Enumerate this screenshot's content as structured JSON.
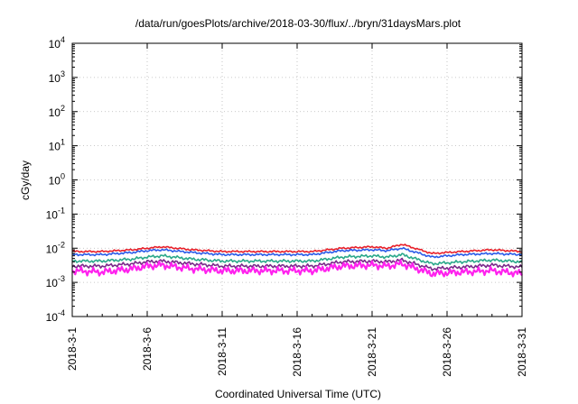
{
  "chart_data": {
    "type": "line",
    "title": "/data/run/goesPlots/archive/2018-03-30/flux/../bryn/31daysMars.plot",
    "xlabel": "Coordinated Universal Time (UTC)",
    "ylabel": "cGy/day",
    "yscale": "log",
    "ylim": [
      0.0001,
      10000
    ],
    "xlim": [
      0,
      30
    ],
    "grid": true,
    "y_ticks": [
      {
        "exp": -4,
        "value": 0.0001
      },
      {
        "exp": -3,
        "value": 0.001
      },
      {
        "exp": -2,
        "value": 0.01
      },
      {
        "exp": -1,
        "value": 0.1
      },
      {
        "exp": 0,
        "value": 1
      },
      {
        "exp": 1,
        "value": 10
      },
      {
        "exp": 2,
        "value": 100
      },
      {
        "exp": 3,
        "value": 1000
      },
      {
        "exp": 4,
        "value": 10000
      }
    ],
    "x_ticks": [
      {
        "day": 0,
        "label": "2018-3-1"
      },
      {
        "day": 5,
        "label": "2018-3-6"
      },
      {
        "day": 10,
        "label": "2018-3-11"
      },
      {
        "day": 15,
        "label": "2018-3-16"
      },
      {
        "day": 20,
        "label": "2018-3-21"
      },
      {
        "day": 25,
        "label": "2018-3-26"
      },
      {
        "day": 30,
        "label": "2018-3-31"
      }
    ],
    "series_day": [
      0,
      2,
      4,
      5,
      6,
      8,
      10,
      12,
      14,
      16,
      18,
      20,
      21,
      22,
      24,
      26,
      28,
      30
    ],
    "series": [
      {
        "name": "red",
        "color": "#e8202a",
        "values": [
          0.008,
          0.008,
          0.009,
          0.01,
          0.011,
          0.009,
          0.008,
          0.008,
          0.008,
          0.008,
          0.01,
          0.011,
          0.01,
          0.013,
          0.007,
          0.008,
          0.009,
          0.008
        ]
      },
      {
        "name": "blue",
        "color": "#2a5be8",
        "values": [
          0.0065,
          0.0065,
          0.0075,
          0.0085,
          0.009,
          0.0075,
          0.0065,
          0.0065,
          0.0065,
          0.0065,
          0.0085,
          0.009,
          0.0085,
          0.01,
          0.0055,
          0.0065,
          0.007,
          0.0065
        ]
      },
      {
        "name": "teal",
        "color": "#2aa88a",
        "values": [
          0.0042,
          0.0042,
          0.0048,
          0.0055,
          0.006,
          0.0048,
          0.0042,
          0.0042,
          0.0042,
          0.0042,
          0.0055,
          0.006,
          0.0055,
          0.0065,
          0.0035,
          0.004,
          0.0045,
          0.004
        ]
      },
      {
        "name": "purple",
        "color": "#7a2a8a",
        "values": [
          0.003,
          0.003,
          0.0035,
          0.004,
          0.0042,
          0.0035,
          0.003,
          0.003,
          0.003,
          0.003,
          0.004,
          0.0042,
          0.004,
          0.0045,
          0.0025,
          0.0028,
          0.0032,
          0.0028
        ]
      },
      {
        "name": "magenta",
        "color": "#ff22ee",
        "values": [
          0.0022,
          0.002,
          0.0025,
          0.003,
          0.0032,
          0.0025,
          0.0022,
          0.0022,
          0.0022,
          0.0022,
          0.003,
          0.0032,
          0.003,
          0.0035,
          0.0018,
          0.002,
          0.0022,
          0.0018
        ]
      }
    ]
  }
}
